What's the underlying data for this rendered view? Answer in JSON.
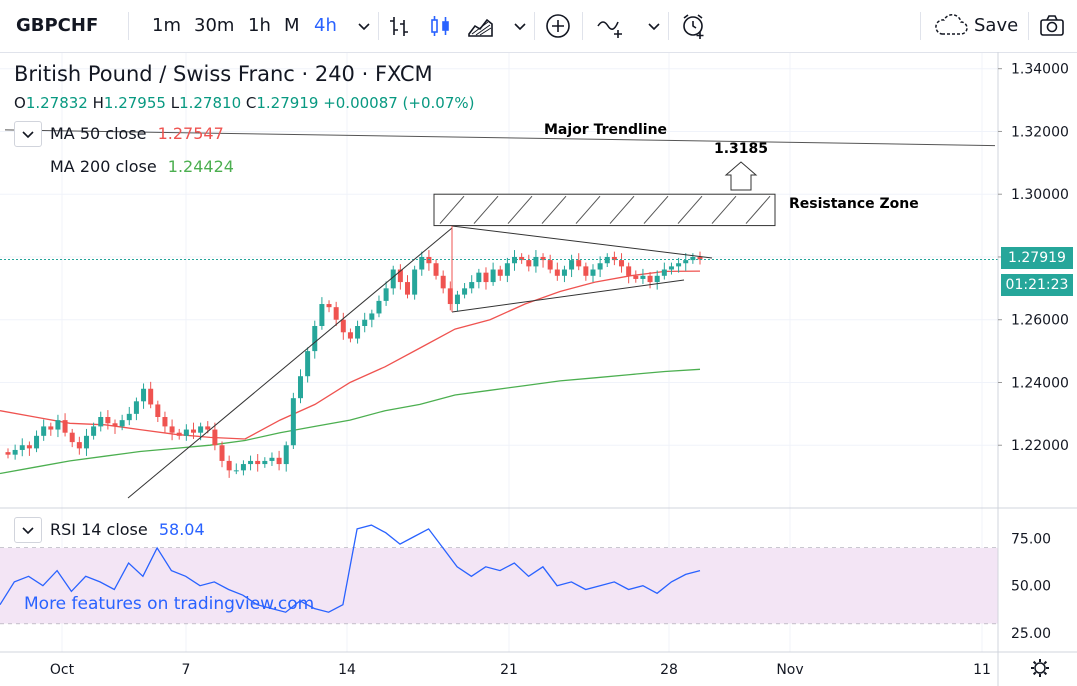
{
  "toolbar": {
    "symbol": "GBPCHF",
    "intervals": [
      "1m",
      "30m",
      "1h",
      "M",
      "4h"
    ],
    "active_interval": "4h",
    "save_label": "Save"
  },
  "legend": {
    "title": "British Pound / Swiss Franc · 240 · FXCM",
    "ohlc": {
      "o_key": "O",
      "o": "1.27832",
      "h_key": "H",
      "h": "1.27955",
      "l_key": "L",
      "l": "1.27810",
      "c_key": "C",
      "c": "1.27919",
      "change": "+0.00087 (+0.07%)"
    },
    "ma50_label": "MA 50 close",
    "ma50_value": "1.27547",
    "ma200_label": "MA 200 close",
    "ma200_value": "1.24424",
    "rsi_label": "RSI 14 close",
    "rsi_value": "58.04"
  },
  "price_axis": {
    "ticks": [
      "1.34000",
      "1.32000",
      "1.30000",
      "1.28000",
      "1.26000",
      "1.24000",
      "1.22000"
    ],
    "last_price": "1.27919",
    "countdown": "01:21:23"
  },
  "rsi_axis": {
    "ticks": [
      "75.00",
      "50.00",
      "25.00"
    ]
  },
  "time_axis": {
    "ticks": [
      "Oct",
      "7",
      "14",
      "21",
      "28",
      "Nov",
      "11"
    ]
  },
  "annotations": {
    "trendline_label": "Major Trendline",
    "target_label": "1.3185",
    "resistance_label": "Resistance Zone"
  },
  "watermark": "More features on tradingview.com",
  "colors": {
    "up": "#26a69a",
    "down": "#ef5350",
    "ma50": "#ef5350",
    "ma200": "#4caf50",
    "rsi": "#2962ff",
    "rsi_band": "#f3e5f5",
    "accent": "#2962ff"
  },
  "chart_data": {
    "type": "candlestick",
    "x_ticks": [
      "Oct",
      "7",
      "14",
      "21",
      "28",
      "Nov",
      "11"
    ],
    "ylim": [
      1.2,
      1.345
    ],
    "y_ticks": [
      1.34,
      1.32,
      1.3,
      1.28,
      1.26,
      1.24,
      1.22
    ],
    "last_price": 1.27919,
    "close_series": [
      1.217,
      1.2185,
      1.22,
      1.219,
      1.223,
      1.226,
      1.225,
      1.228,
      1.224,
      1.221,
      1.219,
      1.223,
      1.226,
      1.229,
      1.227,
      1.226,
      1.228,
      1.23,
      1.234,
      1.238,
      1.233,
      1.229,
      1.226,
      1.224,
      1.223,
      1.225,
      1.224,
      1.226,
      1.225,
      1.22,
      1.215,
      1.212,
      1.212,
      1.214,
      1.215,
      1.214,
      1.215,
      1.216,
      1.214,
      1.22,
      1.235,
      1.242,
      1.25,
      1.258,
      1.265,
      1.264,
      1.26,
      1.256,
      1.254,
      1.258,
      1.26,
      1.262,
      1.266,
      1.27,
      1.276,
      1.272,
      1.268,
      1.276,
      1.28,
      1.278,
      1.274,
      1.27,
      1.265,
      1.268,
      1.27,
      1.272,
      1.275,
      1.272,
      1.276,
      1.274,
      1.278,
      1.28,
      1.279,
      1.277,
      1.28,
      1.279,
      1.276,
      1.274,
      1.276,
      1.279,
      1.277,
      1.274,
      1.276,
      1.278,
      1.28,
      1.279,
      1.277,
      1.274,
      1.273,
      1.274,
      1.272,
      1.274,
      1.276,
      1.277,
      1.278,
      1.279,
      1.28,
      1.2792
    ],
    "ma50": [
      1.231,
      1.229,
      1.227,
      1.2265,
      1.225,
      1.2235,
      1.2225,
      1.222,
      1.228,
      1.233,
      1.24,
      1.245,
      1.251,
      1.257,
      1.26,
      1.265,
      1.269,
      1.272,
      1.274,
      1.2754,
      1.2755
    ],
    "ma200": [
      1.211,
      1.213,
      1.215,
      1.2165,
      1.218,
      1.219,
      1.22,
      1.2215,
      1.224,
      1.226,
      1.228,
      1.231,
      1.233,
      1.236,
      1.2375,
      1.239,
      1.2405,
      1.2415,
      1.2425,
      1.2435,
      1.2442
    ],
    "rsi": [
      40,
      52,
      55,
      50,
      58,
      47,
      55,
      52,
      48,
      62,
      55,
      70,
      58,
      55,
      50,
      52,
      48,
      45,
      40,
      38,
      36,
      42,
      38,
      36,
      40,
      80,
      82,
      78,
      72,
      76,
      80,
      70,
      60,
      55,
      60,
      58,
      62,
      55,
      60,
      50,
      52,
      48,
      50,
      52,
      48,
      50,
      46,
      52,
      56,
      58
    ],
    "rsi_ylim": [
      15,
      90
    ],
    "rsi_band": [
      30,
      70
    ],
    "resistance_zone": [
      1.29,
      1.3
    ],
    "target": 1.3185
  }
}
